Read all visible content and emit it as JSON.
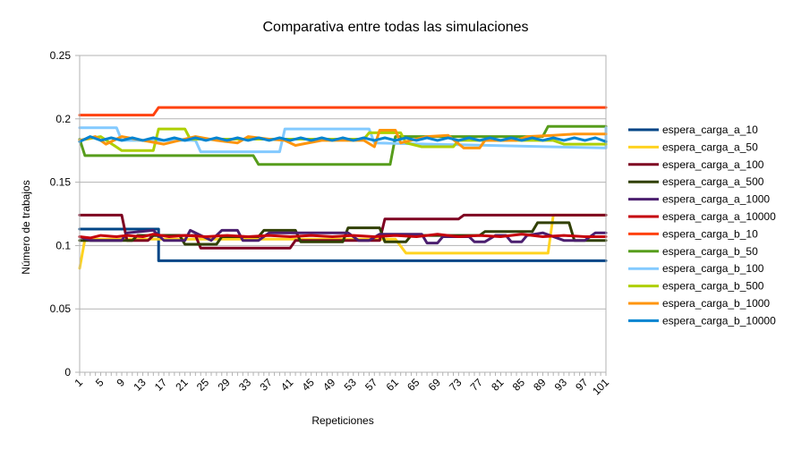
{
  "chart_data": {
    "type": "line",
    "title": "Comparativa entre todas las simulaciones",
    "xlabel": "Repeticiones",
    "ylabel": "Número de trabajos",
    "xlim": [
      1,
      101
    ],
    "ylim": [
      0,
      0.25
    ],
    "grid": true,
    "legend_position": "right",
    "x_tick_labels": [
      "1",
      "5",
      "9",
      "13",
      "17",
      "21",
      "25",
      "29",
      "33",
      "37",
      "41",
      "45",
      "49",
      "53",
      "57",
      "61",
      "65",
      "69",
      "73",
      "77",
      "81",
      "85",
      "89",
      "93",
      "97",
      "101"
    ],
    "y_tick_labels": [
      "0",
      "0.05",
      "0.1",
      "0.15",
      "0.2",
      "0.25"
    ],
    "series": [
      {
        "name": "espera_carga_a_10",
        "color": "#004586",
        "segments": [
          [
            1,
            0.113
          ],
          [
            16,
            0.113
          ],
          [
            16,
            0.088
          ],
          [
            101,
            0.088
          ]
        ]
      },
      {
        "name": "espera_carga_a_50",
        "color": "#ffd320",
        "segments": [
          [
            1,
            0.082
          ],
          [
            2,
            0.105
          ],
          [
            61,
            0.105
          ],
          [
            63,
            0.094
          ],
          [
            90,
            0.094
          ],
          [
            91,
            0.124
          ],
          [
            101,
            0.124
          ]
        ]
      },
      {
        "name": "espera_carga_a_100",
        "color": "#7e0021",
        "segments": [
          [
            1,
            0.124
          ],
          [
            9,
            0.124
          ],
          [
            10,
            0.104
          ],
          [
            14,
            0.104
          ],
          [
            15,
            0.108
          ],
          [
            23,
            0.108
          ],
          [
            24,
            0.098
          ],
          [
            41,
            0.098
          ],
          [
            42,
            0.104
          ],
          [
            58,
            0.104
          ],
          [
            59,
            0.121
          ],
          [
            73,
            0.121
          ],
          [
            74,
            0.124
          ],
          [
            101,
            0.124
          ]
        ]
      },
      {
        "name": "espera_carga_a_500",
        "color": "#314004",
        "segments": [
          [
            1,
            0.104
          ],
          [
            11,
            0.104
          ],
          [
            12,
            0.108
          ],
          [
            20,
            0.108
          ],
          [
            21,
            0.101
          ],
          [
            27,
            0.101
          ],
          [
            28,
            0.107
          ],
          [
            35,
            0.107
          ],
          [
            36,
            0.112
          ],
          [
            42,
            0.112
          ],
          [
            43,
            0.103
          ],
          [
            51,
            0.103
          ],
          [
            52,
            0.114
          ],
          [
            58,
            0.114
          ],
          [
            59,
            0.103
          ],
          [
            63,
            0.103
          ],
          [
            64,
            0.108
          ],
          [
            77,
            0.108
          ],
          [
            78,
            0.111
          ],
          [
            87,
            0.111
          ],
          [
            88,
            0.118
          ],
          [
            94,
            0.118
          ],
          [
            95,
            0.104
          ],
          [
            101,
            0.104
          ]
        ]
      },
      {
        "name": "espera_carga_a_1000",
        "color": "#4b1f6f",
        "segments": [
          [
            1,
            0.107
          ],
          [
            3,
            0.104
          ],
          [
            9,
            0.104
          ],
          [
            10,
            0.11
          ],
          [
            15,
            0.112
          ],
          [
            17,
            0.104
          ],
          [
            21,
            0.104
          ],
          [
            22,
            0.112
          ],
          [
            26,
            0.104
          ],
          [
            28,
            0.112
          ],
          [
            31,
            0.112
          ],
          [
            32,
            0.104
          ],
          [
            35,
            0.104
          ],
          [
            37,
            0.11
          ],
          [
            52,
            0.11
          ],
          [
            54,
            0.104
          ],
          [
            56,
            0.104
          ],
          [
            58,
            0.109
          ],
          [
            66,
            0.109
          ],
          [
            67,
            0.102
          ],
          [
            69,
            0.102
          ],
          [
            70,
            0.107
          ],
          [
            75,
            0.107
          ],
          [
            76,
            0.103
          ],
          [
            78,
            0.103
          ],
          [
            80,
            0.108
          ],
          [
            82,
            0.108
          ],
          [
            83,
            0.103
          ],
          [
            85,
            0.103
          ],
          [
            86,
            0.108
          ],
          [
            89,
            0.11
          ],
          [
            93,
            0.104
          ],
          [
            97,
            0.104
          ],
          [
            99,
            0.11
          ],
          [
            101,
            0.11
          ]
        ]
      },
      {
        "name": "espera_carga_a_10000",
        "color": "#c5000b",
        "segments": [
          [
            1,
            0.107
          ],
          [
            3,
            0.106
          ],
          [
            5,
            0.108
          ],
          [
            8,
            0.107
          ],
          [
            10,
            0.108
          ],
          [
            13,
            0.107
          ],
          [
            15,
            0.109
          ],
          [
            18,
            0.107
          ],
          [
            21,
            0.108
          ],
          [
            25,
            0.107
          ],
          [
            29,
            0.108
          ],
          [
            33,
            0.107
          ],
          [
            37,
            0.108
          ],
          [
            41,
            0.107
          ],
          [
            45,
            0.108
          ],
          [
            49,
            0.107
          ],
          [
            53,
            0.108
          ],
          [
            57,
            0.107
          ],
          [
            61,
            0.108
          ],
          [
            65,
            0.107
          ],
          [
            69,
            0.109
          ],
          [
            73,
            0.107
          ],
          [
            77,
            0.108
          ],
          [
            81,
            0.107
          ],
          [
            85,
            0.109
          ],
          [
            89,
            0.107
          ],
          [
            93,
            0.108
          ],
          [
            97,
            0.107
          ],
          [
            101,
            0.107
          ]
        ]
      },
      {
        "name": "espera_carga_b_10",
        "color": "#ff420e",
        "segments": [
          [
            1,
            0.203
          ],
          [
            15,
            0.203
          ],
          [
            16,
            0.209
          ],
          [
            101,
            0.209
          ]
        ]
      },
      {
        "name": "espera_carga_b_50",
        "color": "#579d1c",
        "segments": [
          [
            1,
            0.184
          ],
          [
            2,
            0.171
          ],
          [
            34,
            0.171
          ],
          [
            35,
            0.164
          ],
          [
            60,
            0.164
          ],
          [
            61,
            0.186
          ],
          [
            89,
            0.186
          ],
          [
            90,
            0.194
          ],
          [
            101,
            0.194
          ]
        ]
      },
      {
        "name": "espera_carga_b_100",
        "color": "#83caff",
        "segments": [
          [
            1,
            0.193
          ],
          [
            8,
            0.193
          ],
          [
            9,
            0.183
          ],
          [
            23,
            0.183
          ],
          [
            24,
            0.174
          ],
          [
            39,
            0.174
          ],
          [
            40,
            0.192
          ],
          [
            56,
            0.192
          ],
          [
            57,
            0.181
          ],
          [
            101,
            0.177
          ],
          [
            101,
            0.193
          ]
        ]
      },
      {
        "name": "espera_carga_b_500",
        "color": "#aecf00",
        "segments": [
          [
            1,
            0.183
          ],
          [
            5,
            0.186
          ],
          [
            9,
            0.175
          ],
          [
            15,
            0.175
          ],
          [
            16,
            0.192
          ],
          [
            21,
            0.192
          ],
          [
            22,
            0.184
          ],
          [
            55,
            0.184
          ],
          [
            56,
            0.189
          ],
          [
            62,
            0.189
          ],
          [
            63,
            0.181
          ],
          [
            66,
            0.178
          ],
          [
            72,
            0.178
          ],
          [
            73,
            0.183
          ],
          [
            91,
            0.183
          ],
          [
            93,
            0.18
          ],
          [
            101,
            0.18
          ]
        ]
      },
      {
        "name": "espera_carga_b_1000",
        "color": "#ff950e",
        "segments": [
          [
            1,
            0.183
          ],
          [
            4,
            0.186
          ],
          [
            6,
            0.18
          ],
          [
            9,
            0.186
          ],
          [
            13,
            0.183
          ],
          [
            17,
            0.18
          ],
          [
            23,
            0.186
          ],
          [
            27,
            0.183
          ],
          [
            31,
            0.181
          ],
          [
            33,
            0.186
          ],
          [
            37,
            0.184
          ],
          [
            40,
            0.183
          ],
          [
            42,
            0.179
          ],
          [
            47,
            0.183
          ],
          [
            55,
            0.183
          ],
          [
            57,
            0.178
          ],
          [
            58,
            0.191
          ],
          [
            61,
            0.191
          ],
          [
            62,
            0.181
          ],
          [
            67,
            0.186
          ],
          [
            71,
            0.187
          ],
          [
            74,
            0.177
          ],
          [
            77,
            0.177
          ],
          [
            78,
            0.183
          ],
          [
            84,
            0.183
          ],
          [
            86,
            0.186
          ],
          [
            91,
            0.187
          ],
          [
            95,
            0.188
          ],
          [
            101,
            0.188
          ]
        ]
      },
      {
        "name": "espera_carga_b_10000",
        "color": "#0084d1",
        "segments": [
          [
            1,
            0.182
          ],
          [
            3,
            0.186
          ],
          [
            5,
            0.183
          ],
          [
            7,
            0.185
          ],
          [
            9,
            0.183
          ],
          [
            11,
            0.185
          ],
          [
            13,
            0.183
          ],
          [
            15,
            0.185
          ],
          [
            17,
            0.183
          ],
          [
            19,
            0.185
          ],
          [
            21,
            0.183
          ],
          [
            23,
            0.185
          ],
          [
            25,
            0.183
          ],
          [
            27,
            0.185
          ],
          [
            29,
            0.183
          ],
          [
            31,
            0.185
          ],
          [
            33,
            0.183
          ],
          [
            35,
            0.185
          ],
          [
            37,
            0.183
          ],
          [
            39,
            0.185
          ],
          [
            41,
            0.183
          ],
          [
            43,
            0.185
          ],
          [
            45,
            0.183
          ],
          [
            47,
            0.185
          ],
          [
            49,
            0.183
          ],
          [
            51,
            0.185
          ],
          [
            53,
            0.183
          ],
          [
            55,
            0.185
          ],
          [
            57,
            0.183
          ],
          [
            59,
            0.185
          ],
          [
            61,
            0.183
          ],
          [
            63,
            0.185
          ],
          [
            65,
            0.183
          ],
          [
            67,
            0.185
          ],
          [
            69,
            0.183
          ],
          [
            71,
            0.185
          ],
          [
            73,
            0.183
          ],
          [
            75,
            0.185
          ],
          [
            77,
            0.183
          ],
          [
            79,
            0.185
          ],
          [
            81,
            0.183
          ],
          [
            83,
            0.185
          ],
          [
            85,
            0.183
          ],
          [
            87,
            0.185
          ],
          [
            89,
            0.183
          ],
          [
            91,
            0.185
          ],
          [
            93,
            0.183
          ],
          [
            95,
            0.185
          ],
          [
            97,
            0.183
          ],
          [
            99,
            0.185
          ],
          [
            101,
            0.182
          ]
        ]
      }
    ]
  }
}
